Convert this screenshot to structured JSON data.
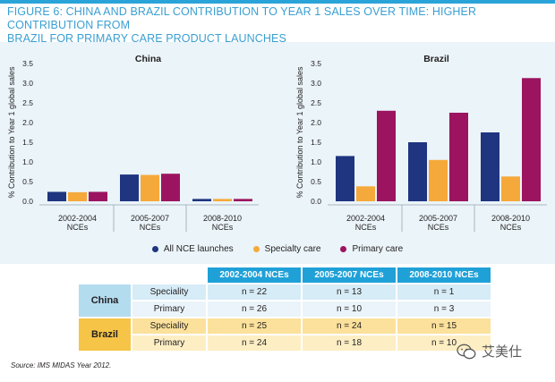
{
  "figure_title": "FIGURE 6: CHINA AND BRAZIL CONTRIBUTION TO YEAR 1 SALES OVER TIME: HIGHER CONTRIBUTION FROM\nBRAZIL FOR PRIMARY CARE PRODUCT LAUNCHES",
  "colors": {
    "all_nce": "#1f3580",
    "specialty": "#f6a93b",
    "primary": "#9c1460",
    "accent": "#2aa4d8",
    "panel_bg": "#eaf4f9"
  },
  "chart_data": [
    {
      "type": "bar",
      "title": "China",
      "ylabel": "% Contribution to Year 1 global sales",
      "xlabel": "",
      "ylim": [
        0,
        3.5
      ],
      "yticks": [
        "0.0",
        "0.5",
        "1.0",
        "1.5",
        "2.0",
        "2.5",
        "3.0",
        "3.5"
      ],
      "categories": [
        "2002-2004\nNCEs",
        "2005-2007\nNCEs",
        "2008-2010\nNCEs"
      ],
      "series": [
        {
          "name": "All NCE launches",
          "values": [
            0.24,
            0.68,
            0.06
          ]
        },
        {
          "name": "Specialty care",
          "values": [
            0.23,
            0.67,
            0.06
          ]
        },
        {
          "name": "Primary care",
          "values": [
            0.24,
            0.7,
            0.06
          ]
        }
      ],
      "grid": false
    },
    {
      "type": "bar",
      "title": "Brazil",
      "ylabel": "% Contribution to Year 1 global sales",
      "xlabel": "",
      "ylim": [
        0,
        3.5
      ],
      "yticks": [
        "0.0",
        "0.5",
        "1.0",
        "1.5",
        "2.0",
        "2.5",
        "3.0",
        "3.5"
      ],
      "categories": [
        "2002-2004\nNCEs",
        "2005-2007\nNCEs",
        "2008-2010\nNCEs"
      ],
      "series": [
        {
          "name": "All NCE launches",
          "values": [
            1.15,
            1.5,
            1.75
          ]
        },
        {
          "name": "Specialty care",
          "values": [
            0.38,
            1.05,
            0.63
          ]
        },
        {
          "name": "Primary care",
          "values": [
            2.3,
            2.25,
            3.13
          ]
        }
      ],
      "grid": false
    }
  ],
  "legend": [
    {
      "label": "All NCE launches",
      "color": "#1f3580"
    },
    {
      "label": "Specialty care",
      "color": "#f6a93b"
    },
    {
      "label": "Primary care",
      "color": "#9c1460"
    }
  ],
  "table": {
    "headers": [
      "2002-2004 NCEs",
      "2005-2007 NCEs",
      "2008-2010 NCEs"
    ],
    "rows": [
      {
        "country": "China",
        "type": "Speciality",
        "values": [
          "n = 22",
          "n = 13",
          "n = 1"
        ]
      },
      {
        "country": "",
        "type": "Primary",
        "values": [
          "n = 26",
          "n = 10",
          "n = 3"
        ]
      },
      {
        "country": "Brazil",
        "type": "Speciality",
        "values": [
          "n = 25",
          "n = 24",
          "n = 15"
        ]
      },
      {
        "country": "",
        "type": "Primary",
        "values": [
          "n = 24",
          "n = 18",
          "n = 10"
        ]
      }
    ]
  },
  "source": "Source: IMS MIDAS Year 2012.",
  "watermark": "艾美仕"
}
